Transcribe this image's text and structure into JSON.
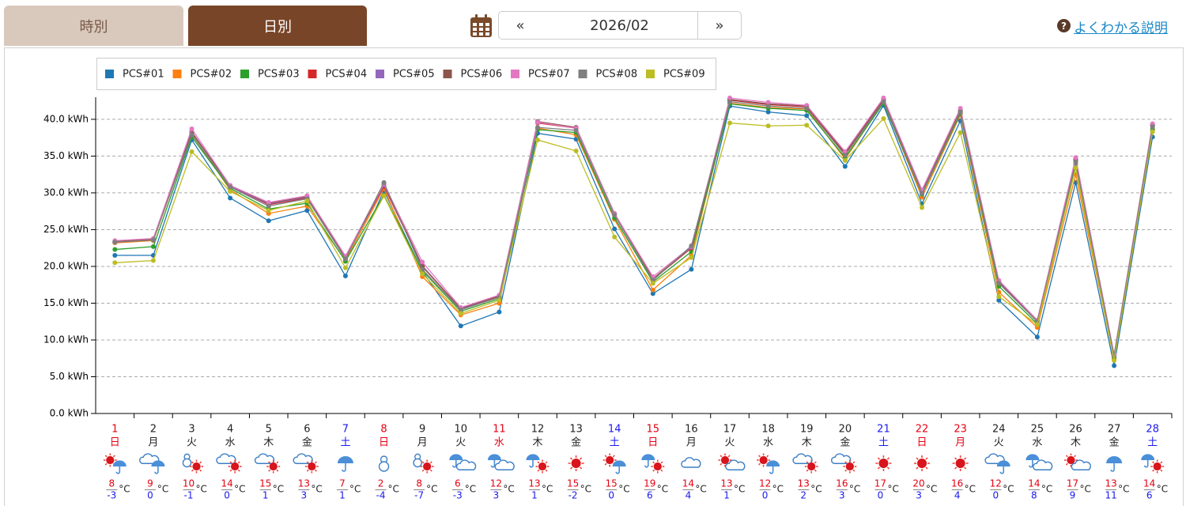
{
  "ui": {
    "tabs": [
      "時別",
      "日別"
    ],
    "nav": {
      "prev": "«",
      "month": "2026/02",
      "next": "»"
    },
    "help": {
      "icon": "?",
      "text": "よくわかる説明"
    }
  },
  "chart_data": {
    "type": "line",
    "categories": [
      "1",
      "2",
      "3",
      "4",
      "5",
      "6",
      "7",
      "8",
      "9",
      "10",
      "11",
      "12",
      "13",
      "14",
      "15",
      "16",
      "17",
      "18",
      "19",
      "20",
      "21",
      "22",
      "23",
      "24",
      "25",
      "26",
      "27",
      "28"
    ],
    "weekdays": [
      "日",
      "月",
      "火",
      "水",
      "木",
      "金",
      "土",
      "日",
      "月",
      "火",
      "水",
      "木",
      "金",
      "土",
      "日",
      "月",
      "火",
      "水",
      "木",
      "金",
      "土",
      "日",
      "月",
      "火",
      "水",
      "木",
      "金",
      "土"
    ],
    "category_colors": [
      "#e60012",
      "#222222",
      "#222222",
      "#222222",
      "#222222",
      "#222222",
      "#1a1aee",
      "#e60012",
      "#222222",
      "#222222",
      "#e60012",
      "#222222",
      "#222222",
      "#1a1aee",
      "#e60012",
      "#222222",
      "#222222",
      "#222222",
      "#222222",
      "#222222",
      "#1a1aee",
      "#e60012",
      "#e60012",
      "#222222",
      "#222222",
      "#222222",
      "#222222",
      "#1a1aee"
    ],
    "weather": [
      "sun/rain",
      "cloud/rain",
      "snow/sun",
      "cloud/sun",
      "cloud/sun",
      "cloud/sun",
      "rain",
      "snow",
      "snow/sun",
      "rain/cloud",
      "rain/cloud",
      "rain/sun",
      "sun",
      "sun/rain",
      "rain/sun",
      "cloud",
      "sun/cloud",
      "sun/rain",
      "cloud/sun",
      "cloud/sun",
      "sun",
      "sun",
      "sun",
      "cloud/rain",
      "rain/cloud",
      "sun/cloud",
      "rain",
      "rain/sun"
    ],
    "temp_high": [
      8,
      9,
      10,
      14,
      15,
      13,
      7,
      2,
      8,
      6,
      12,
      13,
      15,
      15,
      19,
      14,
      13,
      12,
      13,
      16,
      17,
      20,
      16,
      12,
      14,
      17,
      13,
      14
    ],
    "temp_low": [
      -3,
      0,
      -1,
      0,
      1,
      3,
      1,
      -4,
      -7,
      -3,
      3,
      1,
      -2,
      0,
      6,
      4,
      1,
      0,
      2,
      3,
      0,
      3,
      4,
      0,
      8,
      9,
      11,
      6
    ],
    "temp_unit": "°C",
    "ylim": [
      0,
      43
    ],
    "yticks": [
      {
        "value": 0,
        "label": "0.0 kWh"
      },
      {
        "value": 5,
        "label": "5.0 kWh"
      },
      {
        "value": 10,
        "label": "10.0 kWh"
      },
      {
        "value": 15,
        "label": "15.0 kWh"
      },
      {
        "value": 20,
        "label": "20.0 kWh"
      },
      {
        "value": 25,
        "label": "25.0 kWh"
      },
      {
        "value": 30,
        "label": "30.0 kWh"
      },
      {
        "value": 35,
        "label": "35.0 kWh"
      },
      {
        "value": 40,
        "label": "40.0 kWh"
      }
    ],
    "grid": true,
    "legend": "top-left",
    "series": [
      {
        "name": "PCS#01",
        "color": "#1f77b4",
        "values": [
          21.5,
          21.5,
          37.2,
          29.3,
          26.2,
          27.6,
          18.7,
          30.3,
          19.3,
          11.9,
          13.8,
          38.1,
          37.3,
          25.1,
          16.3,
          19.6,
          41.8,
          41.0,
          40.5,
          33.6,
          41.9,
          28.5,
          39.8,
          15.4,
          10.4,
          31.4,
          6.5,
          37.6
        ]
      },
      {
        "name": "PCS#02",
        "color": "#ff7f0e",
        "values": [
          23.2,
          23.5,
          38.0,
          30.4,
          27.2,
          28.2,
          20.8,
          30.6,
          18.6,
          13.4,
          15.0,
          38.8,
          37.9,
          26.4,
          16.8,
          21.5,
          42.2,
          41.6,
          41.4,
          34.6,
          42.3,
          29.4,
          40.6,
          16.5,
          11.7,
          32.5,
          7.4,
          38.6
        ]
      },
      {
        "name": "PCS#03",
        "color": "#2ca02c",
        "values": [
          22.3,
          22.7,
          37.6,
          30.6,
          27.8,
          28.6,
          20.7,
          29.7,
          19.4,
          13.9,
          15.6,
          38.6,
          38.2,
          26.6,
          17.9,
          22.0,
          42.1,
          41.5,
          41.2,
          34.8,
          42.2,
          29.8,
          40.8,
          17.3,
          12.2,
          33.9,
          7.6,
          38.6
        ]
      },
      {
        "name": "PCS#04",
        "color": "#d62728",
        "values": [
          23.3,
          23.6,
          38.3,
          30.9,
          28.4,
          29.3,
          21.2,
          30.9,
          20.0,
          14.2,
          15.9,
          39.5,
          38.8,
          27.0,
          18.2,
          22.5,
          42.6,
          42.0,
          41.7,
          35.3,
          42.6,
          30.1,
          41.0,
          17.8,
          12.5,
          34.4,
          7.8,
          39.2
        ]
      },
      {
        "name": "PCS#05",
        "color": "#9467bd",
        "values": [
          23.3,
          23.6,
          38.3,
          30.9,
          28.5,
          29.4,
          21.2,
          31.1,
          20.1,
          14.2,
          16.0,
          39.6,
          38.8,
          27.1,
          18.3,
          22.6,
          42.7,
          42.1,
          41.8,
          35.4,
          42.7,
          30.2,
          41.1,
          17.9,
          12.6,
          34.5,
          7.9,
          39.2
        ]
      },
      {
        "name": "PCS#06",
        "color": "#8c564b",
        "values": [
          23.4,
          23.7,
          38.2,
          31.0,
          28.6,
          29.5,
          21.3,
          31.3,
          20.0,
          14.3,
          16.0,
          39.7,
          38.9,
          27.2,
          18.3,
          22.7,
          42.7,
          42.1,
          41.8,
          35.4,
          42.7,
          30.3,
          41.2,
          18.0,
          12.6,
          34.6,
          7.9,
          39.3
        ]
      },
      {
        "name": "PCS#07",
        "color": "#e377c2",
        "values": [
          23.5,
          23.8,
          38.7,
          31.0,
          28.7,
          29.6,
          21.4,
          31.2,
          20.6,
          14.4,
          16.1,
          39.6,
          38.8,
          27.2,
          18.6,
          22.7,
          42.9,
          42.3,
          41.9,
          35.6,
          42.9,
          30.4,
          41.5,
          18.1,
          12.7,
          34.8,
          8.0,
          39.4
        ]
      },
      {
        "name": "PCS#08",
        "color": "#7f7f7f",
        "values": [
          23.3,
          23.6,
          37.9,
          30.8,
          28.2,
          29.2,
          21.0,
          31.4,
          19.6,
          14.1,
          15.8,
          38.9,
          38.5,
          27.0,
          18.1,
          22.8,
          42.4,
          41.8,
          41.5,
          35.1,
          42.4,
          29.9,
          41.0,
          17.7,
          12.5,
          34.2,
          7.8,
          39.0
        ]
      },
      {
        "name": "PCS#09",
        "color": "#bcbd22",
        "values": [
          20.5,
          20.8,
          35.6,
          30.2,
          27.6,
          28.9,
          19.8,
          29.6,
          19.0,
          13.6,
          15.4,
          37.2,
          35.7,
          24.0,
          17.7,
          21.2,
          39.5,
          39.1,
          39.2,
          34.4,
          40.1,
          28.0,
          38.2,
          15.9,
          12.1,
          33.4,
          7.2,
          38.3
        ]
      }
    ]
  }
}
